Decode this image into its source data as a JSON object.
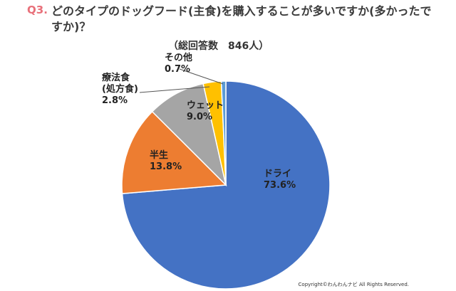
{
  "header": {
    "q_number": "Q3.",
    "title": "どのタイプのドッグフード(主食)を購入することが多いですか(多かったですか)？"
  },
  "subtitle": "（総回答数　846人）",
  "copyright": "Copyright©わんわんナビ All Rights Reserved.",
  "chart_data": {
    "type": "pie",
    "title": "どのタイプのドッグフード(主食)を購入することが多いですか(多かったですか)？",
    "subtitle": "（総回答数　846人）",
    "legend": "none",
    "start_angle_deg": 0,
    "direction": "clockwise",
    "slices": [
      {
        "label": "ドライ",
        "value": 73.6,
        "value_label": "73.6%",
        "color": "#4472c4"
      },
      {
        "label": "半生",
        "value": 13.8,
        "value_label": "13.8%",
        "color": "#ed7d31"
      },
      {
        "label": "ウェット",
        "value": 9.0,
        "value_label": "9.0%",
        "color": "#a5a5a5"
      },
      {
        "label": "療法食\n(処方食)",
        "value": 2.8,
        "value_label": "2.8%",
        "color": "#ffc000"
      },
      {
        "label": "その他",
        "value": 0.7,
        "value_label": "0.7%",
        "color": "#5b9bd5"
      }
    ]
  }
}
